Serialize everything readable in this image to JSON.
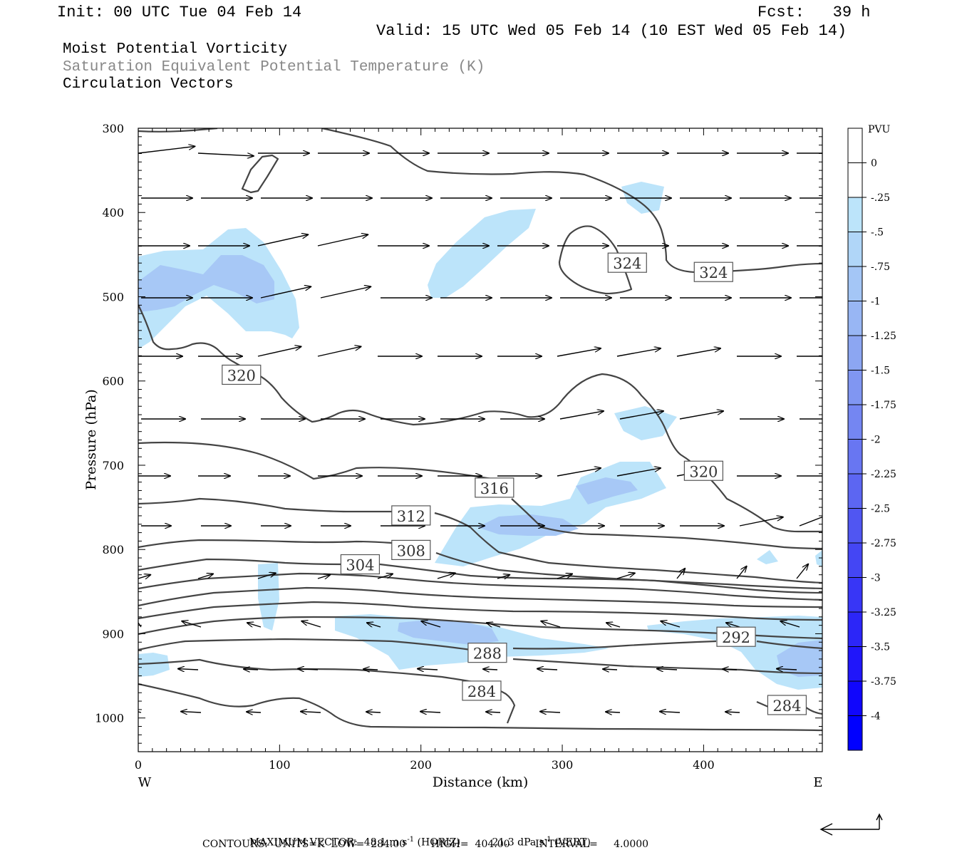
{
  "header": {
    "init": "Init: 00 UTC Tue 04 Feb 14",
    "fcst": "Fcst:   39 h",
    "valid": "Valid: 15 UTC Wed 05 Feb 14 (10 EST Wed 05 Feb 14)"
  },
  "fields": {
    "line1": "Moist Potential Vorticity",
    "line2": "Saturation Equivalent Potential Temperature (K)",
    "line3": "Circulation Vectors"
  },
  "chart_data": {
    "type": "cross-section",
    "xlabel": "Distance (km)",
    "ylabel": "Pressure (hPa)",
    "x_ticks": [
      0,
      100,
      200,
      300,
      400
    ],
    "y_ticks": [
      300,
      400,
      500,
      600,
      700,
      800,
      900,
      1000
    ],
    "xlim": [
      0,
      484
    ],
    "ylim": [
      1040,
      300
    ],
    "x_left_label": "W",
    "x_right_label": "E",
    "colorbar": {
      "unit": "PVU",
      "levels": [
        "0",
        "-.25",
        "-.5",
        "-.75",
        "-1",
        "-1.25",
        "-1.5",
        "-1.75",
        "-2",
        "-2.25",
        "-2.5",
        "-2.75",
        "-3",
        "-3.25",
        "-3.5",
        "-3.75",
        "-4"
      ],
      "colors": [
        "#ffffff",
        "#ffffff",
        "#bce4fa",
        "#b0d6f8",
        "#a4c6f6",
        "#98b6f4",
        "#8ca6f2",
        "#8096f2",
        "#7486f2",
        "#6876f2",
        "#5c66f2",
        "#5056f2",
        "#4446f4",
        "#3836f6",
        "#2c26f8",
        "#2016fa",
        "#1006fc",
        "#0000ff"
      ]
    },
    "contour_labels": [
      {
        "value": "324",
        "x": 346,
        "p": 460
      },
      {
        "value": "324",
        "x": 407,
        "p": 471
      },
      {
        "value": "320",
        "x": 73,
        "p": 593
      },
      {
        "value": "320",
        "x": 400,
        "p": 707
      },
      {
        "value": "316",
        "x": 252,
        "p": 727
      },
      {
        "value": "312",
        "x": 193,
        "p": 760
      },
      {
        "value": "308",
        "x": 193,
        "p": 801
      },
      {
        "value": "304",
        "x": 157,
        "p": 818
      },
      {
        "value": "292",
        "x": 423,
        "p": 904
      },
      {
        "value": "288",
        "x": 247,
        "p": 923
      },
      {
        "value": "284",
        "x": 243,
        "p": 968
      },
      {
        "value": "284",
        "x": 459,
        "p": 985
      }
    ],
    "footer": {
      "max_vector_label": "MAXIMUM VECTOR:",
      "horiz_value": "48.1 m s",
      "horiz_exp": "-1",
      "horiz_tag": "(HORIZ)",
      "vert_value": "21.3 dPa s",
      "vert_exp": "-1",
      "vert_tag": "(VERT)",
      "contours_text": "CONTOURS:  UNITS=K  LOW=  284.00        HIGH=  404.00        INTERVAL=     4.0000"
    }
  }
}
